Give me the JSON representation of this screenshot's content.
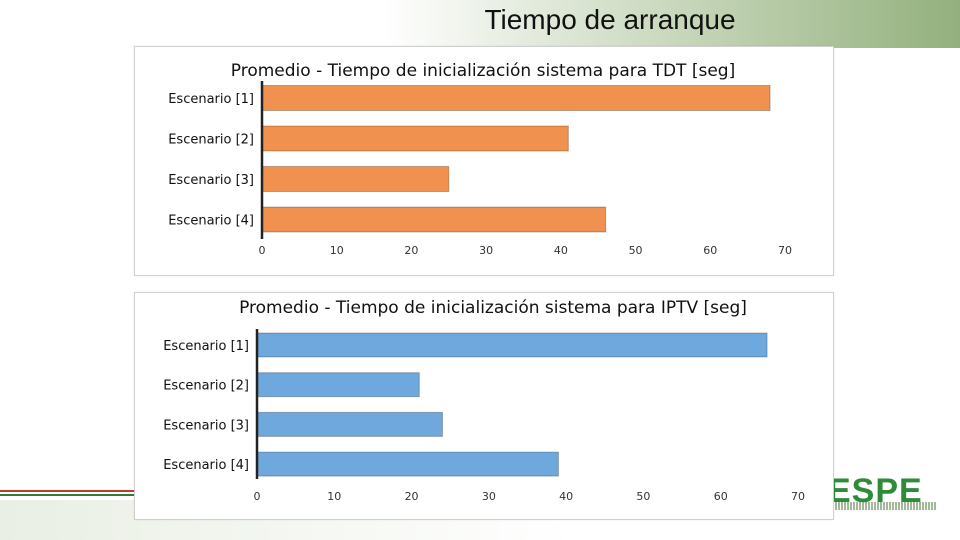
{
  "slide": {
    "title": "Tiempo de arranque",
    "logo": "ESPE"
  },
  "colors": {
    "tdt_bar": "#f0914f",
    "iptv_bar": "#6fa8dc",
    "axis": "#222222"
  },
  "chart_data": [
    {
      "type": "bar",
      "orientation": "horizontal",
      "title": "Promedio -  Tiempo de inicialización sistema para TDT [seg]",
      "categories": [
        "Escenario [1]",
        "Escenario [2]",
        "Escenario [3]",
        "Escenario [4]"
      ],
      "values": [
        68,
        41,
        25,
        46
      ],
      "xlim": [
        0,
        70
      ],
      "xticks": [
        "0",
        "10",
        "20",
        "30",
        "40",
        "50",
        "60",
        "70"
      ],
      "grid": false
    },
    {
      "type": "bar",
      "orientation": "horizontal",
      "title": "Promedio - Tiempo de inicialización sistema para IPTV [seg]",
      "categories": [
        "Escenario [1]",
        "Escenario [2]",
        "Escenario [3]",
        "Escenario [4]"
      ],
      "values": [
        66,
        21,
        24,
        39
      ],
      "xlim": [
        0,
        70
      ],
      "xticks": [
        "0",
        "10",
        "20",
        "30",
        "40",
        "50",
        "60",
        "70"
      ],
      "grid": false
    }
  ]
}
